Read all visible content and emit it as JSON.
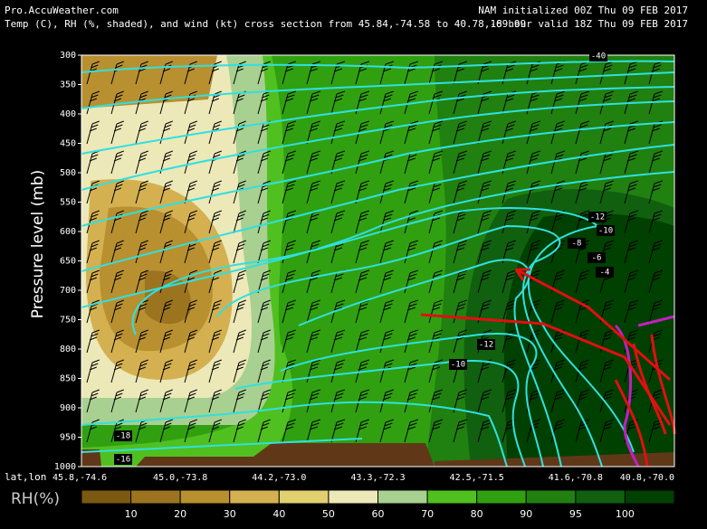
{
  "chart_data": {
    "type": "cross-section",
    "site": "Pro.AccuWeather.com",
    "title": "Temp (C), RH (%, shaded), and wind (kt) cross section from 45.84,-74.58 to 40.78,-69.99",
    "init_label": "NAM initialized 00Z Thu 09 FEB 2017",
    "valid_label": "18 hour valid 18Z Thu 09 FEB 2017",
    "ylabel": "Pressure level (mb)",
    "ylim": [
      1000,
      300
    ],
    "yticks": [
      300,
      350,
      400,
      450,
      500,
      550,
      600,
      650,
      700,
      750,
      800,
      850,
      900,
      950,
      1000
    ],
    "xlabel": "lat,lon",
    "categories": [
      "45.8,-74.6",
      "45.0,-73.8",
      "44.2,-73.0",
      "43.3,-72.3",
      "42.5,-71.5",
      "41.6,-70.8",
      "40.8,-70.0"
    ],
    "contour_labels": [
      -40,
      -12,
      -10,
      -8,
      -6,
      -4,
      -12,
      -10,
      -18,
      -16
    ],
    "colorbar": {
      "label": "RH(%)",
      "ticks": [
        10,
        20,
        30,
        40,
        50,
        60,
        70,
        80,
        90,
        95,
        100
      ],
      "colors": [
        "#7a5a10",
        "#9c7420",
        "#b89030",
        "#d4b050",
        "#e0d070",
        "#ece8b8",
        "#a8d090",
        "#50c020",
        "#30a010",
        "#208010",
        "#106010",
        "#004000"
      ]
    }
  }
}
